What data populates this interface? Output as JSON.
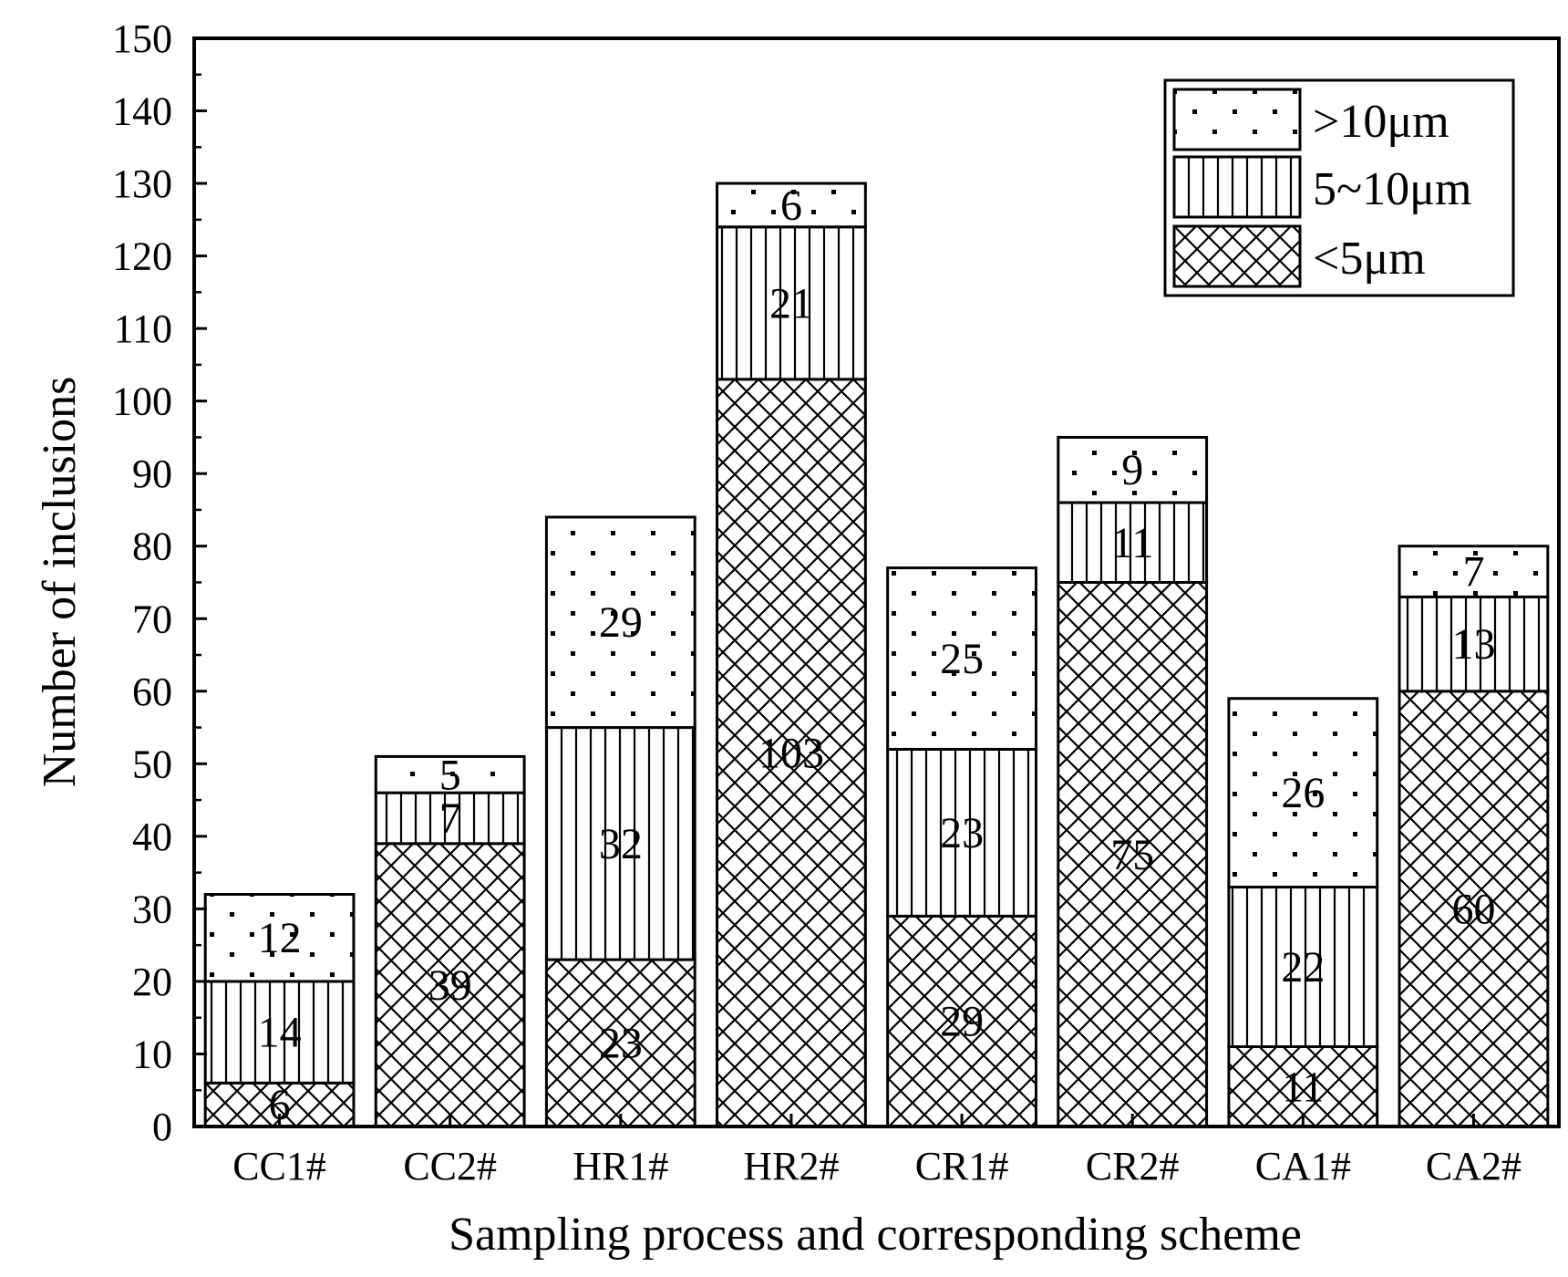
{
  "chart_data": {
    "type": "bar",
    "stacked": true,
    "title": "",
    "xlabel": "Sampling process and corresponding scheme",
    "ylabel": "Number of inclusions",
    "ylim": [
      0,
      150
    ],
    "y_major_step": 10,
    "categories": [
      "CC1#",
      "CC2#",
      "HR1#",
      "HR2#",
      "CR1#",
      "CR2#",
      "CA1#",
      "CA2#"
    ],
    "series": [
      {
        "name": "<5μm",
        "pattern": "crosshatch",
        "values": [
          6,
          39,
          23,
          103,
          29,
          75,
          11,
          60
        ]
      },
      {
        "name": "5~10μm",
        "pattern": "vertical-lines",
        "values": [
          14,
          7,
          32,
          21,
          23,
          11,
          22,
          13
        ]
      },
      {
        "name": ">10μm",
        "pattern": "dots",
        "values": [
          12,
          5,
          29,
          6,
          25,
          9,
          26,
          7
        ]
      }
    ],
    "legend": {
      "position": "top-right",
      "order": [
        ">10μm",
        "5~10μm",
        "<5μm"
      ]
    },
    "colors": {
      "ink": "#000000",
      "background": "#ffffff"
    }
  }
}
